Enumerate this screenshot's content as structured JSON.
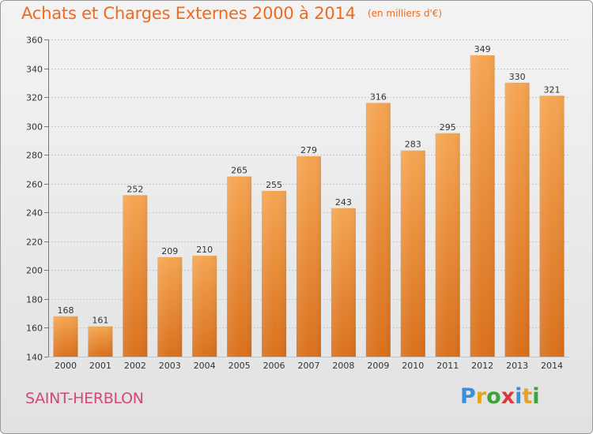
{
  "header": {
    "title": "Achats et Charges Externes 2000 à 2014",
    "subtitle": "(en milliers d'€)"
  },
  "footer": {
    "place": "SAINT-HERBLON",
    "logo_text": "Proxiti",
    "logo_letters": [
      {
        "ch": "P",
        "color": "#3a8fd8"
      },
      {
        "ch": "r",
        "color": "#e8a21c"
      },
      {
        "ch": "o",
        "color": "#3aa33a"
      },
      {
        "ch": "x",
        "color": "#d83a3a"
      },
      {
        "ch": "i",
        "color": "#3a8fd8"
      },
      {
        "ch": "t",
        "color": "#e8a21c"
      },
      {
        "ch": "i",
        "color": "#3aa33a"
      }
    ]
  },
  "colors": {
    "bar_top": "#f5a552",
    "bar_bottom": "#d9701c",
    "grid": "#c8c8c8",
    "axis_text": "#333333",
    "title": "#ef6a1e",
    "place": "#d04a73"
  },
  "chart_data": {
    "type": "bar",
    "title": "Achats et Charges Externes 2000 à 2014",
    "subtitle": "(en milliers d'€)",
    "xlabel": "",
    "ylabel": "",
    "categories": [
      "2000",
      "2001",
      "2002",
      "2003",
      "2004",
      "2005",
      "2006",
      "2007",
      "2008",
      "2009",
      "2010",
      "2011",
      "2012",
      "2013",
      "2014"
    ],
    "values": [
      168,
      161,
      252,
      209,
      210,
      265,
      255,
      279,
      243,
      316,
      283,
      295,
      349,
      330,
      321
    ],
    "ylim": [
      140,
      360
    ],
    "yticks": [
      140,
      160,
      180,
      200,
      220,
      240,
      260,
      280,
      300,
      320,
      340,
      360
    ],
    "grid": true,
    "data_labels": true
  }
}
